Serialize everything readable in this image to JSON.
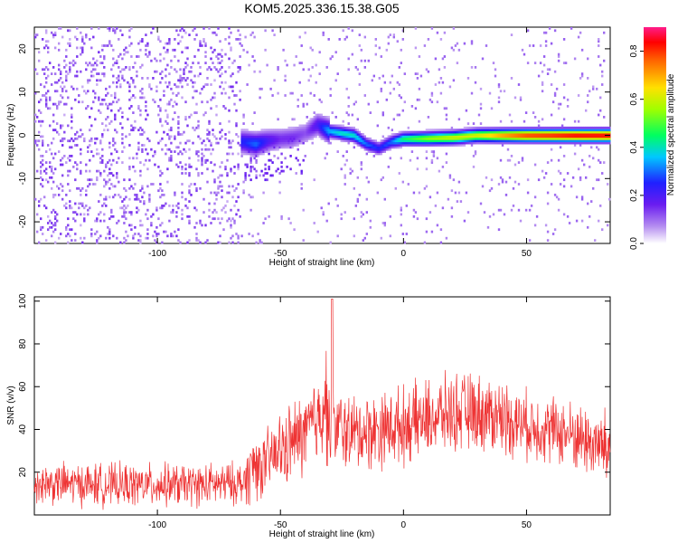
{
  "title": "KOM5.2025.336.15.38.G05",
  "chart_data": [
    {
      "type": "heatmap",
      "xlabel": "Height of straight line (km)",
      "ylabel": "Frequency (Hz)",
      "xlim": [
        -150,
        84
      ],
      "ylim": [
        -25,
        25
      ],
      "xticks": [
        -100,
        -50,
        0,
        50
      ],
      "yticks": [
        -20,
        -10,
        0,
        10,
        20
      ],
      "xtick_labels": [
        "-100",
        "-50",
        "0",
        "50"
      ],
      "ytick_labels": [
        "-20",
        "-10",
        "0",
        "10",
        "20"
      ],
      "colorbar": {
        "label": "Normalized spectral amplitude",
        "range": [
          0,
          0.9
        ],
        "ticks": [
          0,
          0.2,
          0.4,
          0.6,
          0.8
        ],
        "tick_labels": [
          "0.0",
          "0.2",
          "0.4",
          "0.6",
          "0.8"
        ]
      },
      "ridge": {
        "x": [
          -65,
          -60,
          -55,
          -50,
          -45,
          -40,
          -35,
          -30,
          -25,
          -20,
          -15,
          -10,
          -5,
          0,
          10,
          20,
          30,
          40,
          50,
          60,
          70,
          84
        ],
        "y": [
          -1.5,
          -2.0,
          -1.2,
          -0.8,
          -0.5,
          0.5,
          2.5,
          1.0,
          0.5,
          0,
          -2.0,
          -3.0,
          -1.5,
          -0.8,
          -0.7,
          -0.5,
          0,
          0,
          0,
          0,
          0,
          0
        ],
        "amplitude": [
          0.25,
          0.3,
          0.2,
          0.15,
          0.15,
          0.12,
          0.2,
          0.35,
          0.4,
          0.4,
          0.3,
          0.25,
          0.3,
          0.45,
          0.55,
          0.6,
          0.62,
          0.72,
          0.8,
          0.82,
          0.85,
          0.85
        ]
      },
      "noise_region": {
        "x": [
          -150,
          -65
        ],
        "level": [
          0.05,
          0.12
        ]
      },
      "grid": false
    },
    {
      "type": "line",
      "xlabel": "Height of straight line (km)",
      "ylabel": "SNR (v/v)",
      "xlim": [
        -150,
        84
      ],
      "ylim": [
        0,
        102
      ],
      "xticks": [
        -100,
        -50,
        0,
        50
      ],
      "yticks": [
        20,
        40,
        60,
        80,
        100
      ],
      "xtick_labels": [
        "-100",
        "-50",
        "0",
        "50"
      ],
      "ytick_labels": [
        "20",
        "40",
        "60",
        "80",
        "100"
      ],
      "color": "#ee3333",
      "envelope": {
        "x": [
          -150,
          -120,
          -100,
          -80,
          -65,
          -60,
          -58,
          -50,
          -40,
          -35,
          -32,
          -30,
          -20,
          -10,
          0,
          10,
          20,
          30,
          40,
          50,
          60,
          70,
          80,
          84
        ],
        "mean": [
          15,
          14,
          14,
          14,
          15,
          25,
          22,
          30,
          38,
          45,
          55,
          42,
          38,
          40,
          42,
          45,
          48,
          48,
          46,
          42,
          40,
          37,
          32,
          30
        ],
        "spread": [
          10,
          10,
          10,
          10,
          10,
          20,
          14,
          18,
          20,
          22,
          30,
          20,
          18,
          18,
          18,
          18,
          18,
          18,
          18,
          16,
          16,
          16,
          18,
          20
        ]
      },
      "peak": {
        "x": -29,
        "y": 101
      },
      "grid": false
    }
  ]
}
